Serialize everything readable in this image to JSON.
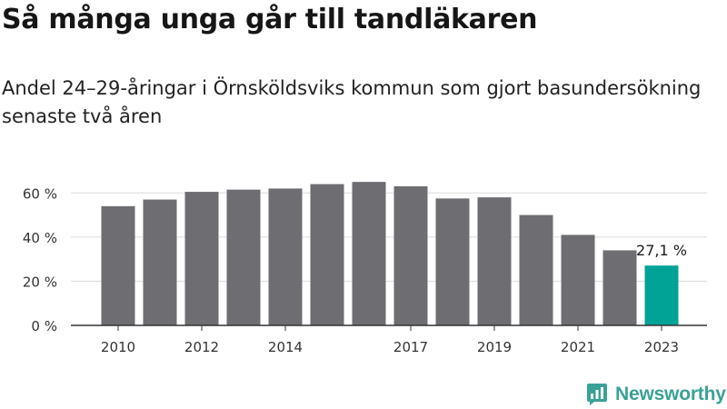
{
  "header": {
    "title": "Så många unga går till tandläkaren",
    "subtitle": "Andel 24–29-åringar i Örnsköldsviks kommun som gjort basundersökning senaste två åren"
  },
  "branding": {
    "name": "Newsworthy"
  },
  "chart_data": {
    "type": "bar",
    "categories": [
      "2010",
      "2011",
      "2012",
      "2013",
      "2014",
      "2015",
      "2016",
      "2017",
      "2018",
      "2019",
      "2020",
      "2021",
      "2022",
      "2023"
    ],
    "x_tick_labels": [
      "2010",
      "",
      "2012",
      "",
      "2014",
      "",
      "",
      "2017",
      "",
      "2019",
      "",
      "2021",
      "",
      "2023"
    ],
    "values": [
      54,
      57,
      60.5,
      61.5,
      62,
      64,
      65,
      63,
      57.5,
      58,
      50,
      41,
      34,
      27.1
    ],
    "ylim": [
      0,
      70
    ],
    "y_ticks": [
      0,
      20,
      40,
      60
    ],
    "y_tick_labels": [
      "0 %",
      "20 %",
      "40 %",
      "60 %"
    ],
    "highlight_index": 13,
    "highlight_label": "27,1 %",
    "colors": {
      "bar": "#6e6d71",
      "highlight": "#00a396",
      "grid": "#dcdcdc",
      "axis": "#333333"
    },
    "grid": true
  }
}
